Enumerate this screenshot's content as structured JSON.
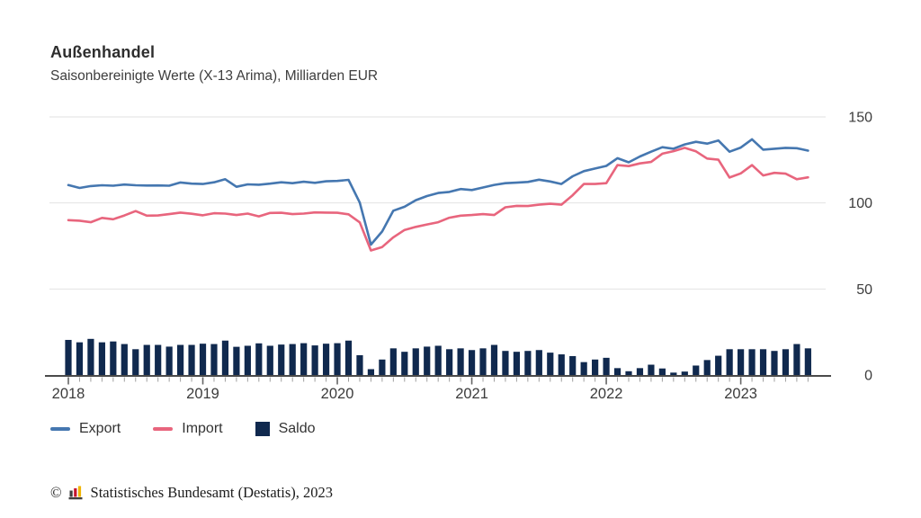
{
  "title": "Außenhandel",
  "subtitle": "Saisonbereinigte Werte (X-13 Arima), Milliarden EUR",
  "legend": {
    "items": [
      {
        "label": "Export",
        "color": "#4577b0",
        "swatch": "line"
      },
      {
        "label": "Import",
        "color": "#e8657d",
        "swatch": "line"
      },
      {
        "label": "Saldo",
        "color": "#10294e",
        "swatch": "square"
      }
    ]
  },
  "footer": {
    "copyright": "©",
    "source_text": "Statistisches Bundesamt (Destatis), 2023",
    "logo": {
      "name": "destatis-bars-logo",
      "colors": [
        "#3f3f3f",
        "#c4142d",
        "#f0b400",
        "#3f3f3f"
      ]
    }
  },
  "colors": {
    "export_line": "#4577b0",
    "import_line": "#e8657d",
    "saldo_bar": "#10294e",
    "gridline": "#e2e2e2",
    "axis": "#4a4a4a",
    "tick_minor": "#a0a0a0",
    "tick_year": "#666666",
    "label_text": "#3c3c3c"
  },
  "chart_data": {
    "type": "line+bar",
    "title": "Außenhandel",
    "subtitle": "Saisonbereinigte Werte (X-13 Arima), Milliarden EUR",
    "unit": "Milliarden EUR",
    "grid": true,
    "legend_position": "bottom",
    "ylim": [
      0,
      150
    ],
    "y_ticks": [
      0,
      50,
      100,
      150
    ],
    "x_year_labels": [
      "2018",
      "2019",
      "2020",
      "2021",
      "2022",
      "2023"
    ],
    "months": [
      "2018-01",
      "2018-02",
      "2018-03",
      "2018-04",
      "2018-05",
      "2018-06",
      "2018-07",
      "2018-08",
      "2018-09",
      "2018-10",
      "2018-11",
      "2018-12",
      "2019-01",
      "2019-02",
      "2019-03",
      "2019-04",
      "2019-05",
      "2019-06",
      "2019-07",
      "2019-08",
      "2019-09",
      "2019-10",
      "2019-11",
      "2019-12",
      "2020-01",
      "2020-02",
      "2020-03",
      "2020-04",
      "2020-05",
      "2020-06",
      "2020-07",
      "2020-08",
      "2020-09",
      "2020-10",
      "2020-11",
      "2020-12",
      "2021-01",
      "2021-02",
      "2021-03",
      "2021-04",
      "2021-05",
      "2021-06",
      "2021-07",
      "2021-08",
      "2021-09",
      "2021-10",
      "2021-11",
      "2021-12",
      "2022-01",
      "2022-02",
      "2022-03",
      "2022-04",
      "2022-05",
      "2022-06",
      "2022-07",
      "2022-08",
      "2022-09",
      "2022-10",
      "2022-11",
      "2022-12",
      "2023-01",
      "2023-02",
      "2023-03",
      "2023-04",
      "2023-05",
      "2023-06",
      "2023-07"
    ],
    "series": [
      {
        "name": "Export",
        "type": "line",
        "color": "#4577b0",
        "values": [
          110.4,
          108.7,
          109.8,
          110.3,
          110.0,
          110.7,
          110.3,
          110.1,
          110.2,
          110.0,
          111.9,
          111.2,
          111.0,
          112.0,
          113.8,
          109.4,
          110.8,
          110.6,
          111.2,
          112.0,
          111.5,
          112.3,
          111.7,
          112.6,
          112.8,
          113.4,
          100.2,
          75.8,
          83.4,
          95.5,
          97.8,
          101.6,
          104.0,
          105.8,
          106.4,
          108.1,
          107.5,
          109.0,
          110.5,
          111.5,
          111.8,
          112.2,
          113.5,
          112.5,
          111.0,
          115.5,
          118.5,
          120.0,
          121.5,
          126.0,
          123.6,
          127.0,
          129.8,
          132.4,
          131.5,
          134.0,
          135.5,
          134.5,
          136.3,
          129.8,
          132.2,
          137.0,
          131.0,
          131.5,
          132.0,
          131.8,
          130.4
        ]
      },
      {
        "name": "Import",
        "type": "line",
        "color": "#e8657d",
        "values": [
          90.0,
          89.7,
          88.8,
          91.3,
          90.5,
          92.7,
          95.3,
          92.6,
          92.7,
          93.5,
          94.4,
          93.7,
          92.8,
          94.0,
          93.8,
          93.0,
          93.8,
          92.2,
          94.2,
          94.3,
          93.5,
          93.8,
          94.5,
          94.4,
          94.3,
          93.4,
          88.7,
          72.4,
          74.4,
          80.0,
          84.3,
          86.1,
          87.5,
          88.8,
          91.4,
          92.6,
          93.0,
          93.5,
          93.0,
          97.5,
          98.3,
          98.2,
          99.0,
          99.5,
          99.0,
          104.5,
          111.0,
          111.0,
          111.5,
          122.0,
          121.4,
          123.0,
          123.8,
          128.6,
          130.1,
          132.0,
          130.0,
          125.8,
          125.1,
          114.8,
          117.2,
          122.0,
          116.0,
          117.5,
          117.0,
          113.8,
          114.9
        ]
      },
      {
        "name": "Saldo",
        "type": "bar",
        "color": "#10294e",
        "values": [
          20.4,
          19.0,
          21.0,
          19.0,
          19.5,
          18.0,
          15.0,
          17.5,
          17.5,
          16.5,
          17.5,
          17.5,
          18.2,
          18.0,
          20.0,
          16.4,
          17.0,
          18.4,
          17.0,
          17.7,
          18.0,
          18.5,
          17.2,
          18.2,
          18.5,
          20.0,
          11.5,
          3.4,
          9.0,
          15.5,
          13.5,
          15.5,
          16.5,
          17.0,
          15.0,
          15.5,
          14.5,
          15.5,
          17.5,
          14.0,
          13.5,
          14.0,
          14.5,
          13.0,
          12.0,
          11.0,
          7.5,
          9.0,
          10.0,
          4.0,
          2.2,
          4.0,
          6.0,
          3.8,
          1.4,
          2.0,
          5.5,
          8.7,
          11.2,
          15.0,
          15.0,
          15.0,
          15.0,
          14.0,
          15.0,
          18.0,
          15.5
        ]
      }
    ]
  }
}
